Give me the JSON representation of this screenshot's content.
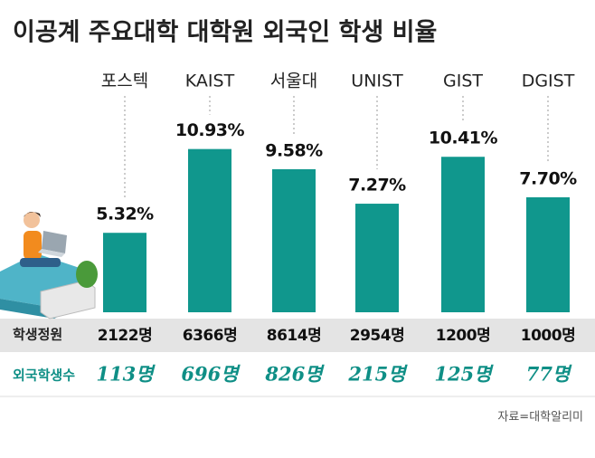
{
  "chart_data": {
    "type": "bar",
    "title": "이공계 주요대학 대학원 외국인 학생 비율",
    "categories": [
      "포스텍",
      "KAIST",
      "서울대",
      "UNIST",
      "GIST",
      "DGIST"
    ],
    "values": [
      5.32,
      10.93,
      9.58,
      7.27,
      10.41,
      7.7
    ],
    "value_labels": [
      "5.32%",
      "10.93%",
      "9.58%",
      "7.27%",
      "10.41%",
      "7.70%"
    ],
    "color": "#10978d",
    "rows": [
      {
        "name": "학생정원",
        "values": [
          2122,
          6366,
          8614,
          2954,
          1200,
          1000
        ],
        "value_labels": [
          "2122명",
          "6366명",
          "8614명",
          "2954명",
          "1200명",
          "1000명"
        ]
      },
      {
        "name": "외국학생수",
        "values": [
          113,
          696,
          826,
          215,
          125,
          77
        ],
        "value_labels": [
          "113명",
          "696명",
          "826명",
          "215명",
          "125명",
          "77명"
        ]
      }
    ],
    "source": "자료=대학알리미"
  }
}
